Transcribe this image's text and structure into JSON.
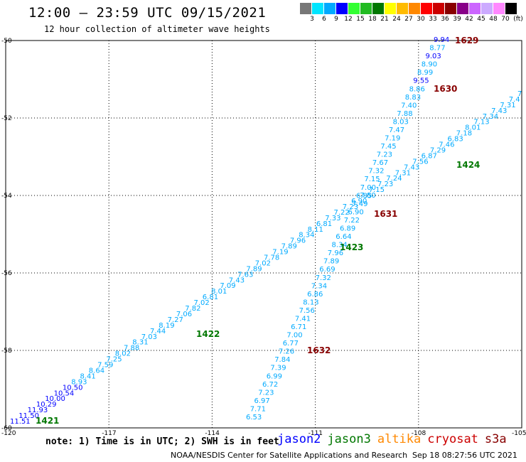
{
  "header": {
    "title": "12:00 – 23:59 UTC 09/15/2021",
    "subtitle": "12 hour collection of altimeter wave heights"
  },
  "legend": {
    "unit": "(ft)",
    "items": [
      {
        "label": "3",
        "color": "#777777"
      },
      {
        "label": "6",
        "color": "#00e5ff"
      },
      {
        "label": "9",
        "color": "#00aaff"
      },
      {
        "label": "12",
        "color": "#0000ff"
      },
      {
        "label": "15",
        "color": "#33ff33"
      },
      {
        "label": "18",
        "color": "#22bb22"
      },
      {
        "label": "21",
        "color": "#007700"
      },
      {
        "label": "24",
        "color": "#ffff00"
      },
      {
        "label": "27",
        "color": "#ffbb00"
      },
      {
        "label": "30",
        "color": "#ff8800"
      },
      {
        "label": "33",
        "color": "#ff0000"
      },
      {
        "label": "36",
        "color": "#cc0000"
      },
      {
        "label": "39",
        "color": "#880000"
      },
      {
        "label": "42",
        "color": "#880088"
      },
      {
        "label": "45",
        "color": "#cc66ff"
      },
      {
        "label": "48",
        "color": "#ccaaff"
      },
      {
        "label": "70",
        "color": "#ff88ff"
      },
      {
        "label": "",
        "color": "#000000"
      }
    ]
  },
  "map": {
    "lon_range": [
      -120,
      -105
    ],
    "lat_range": [
      -50,
      -60
    ],
    "lon_ticks": [
      "-120",
      "-117",
      "-114",
      "-111",
      "-108",
      "-105"
    ],
    "lat_ticks": [
      "-50",
      "-52",
      "-54",
      "-56",
      "-58",
      "-60"
    ],
    "grid": "dotted"
  },
  "tracks": [
    {
      "id": "jason3-pass-a",
      "points": [
        {
          "t": "11.51",
          "c": "#0000ff"
        },
        {
          "t": "11.50",
          "c": "#0000ff"
        },
        {
          "t": "11.93",
          "c": "#0000ff"
        },
        {
          "t": "10.29",
          "c": "#0000ff"
        },
        {
          "t": "10.00",
          "c": "#0000ff"
        },
        {
          "t": "10.54",
          "c": "#0000ff"
        },
        {
          "t": "10.50",
          "c": "#0000ff"
        },
        {
          "t": "8.93",
          "c": "#00aaff"
        },
        {
          "t": "8.41",
          "c": "#00aaff"
        },
        {
          "t": "8.64",
          "c": "#00aaff"
        },
        {
          "t": "7.59",
          "c": "#00aaff"
        },
        {
          "t": "7.25",
          "c": "#00aaff"
        },
        {
          "t": "8.02",
          "c": "#00aaff"
        },
        {
          "t": "7.88",
          "c": "#00aaff"
        },
        {
          "t": "8.31",
          "c": "#00aaff"
        },
        {
          "t": "7.03",
          "c": "#00aaff"
        },
        {
          "t": "7.44",
          "c": "#00aaff"
        },
        {
          "t": "8.19",
          "c": "#00aaff"
        },
        {
          "t": "7.27",
          "c": "#00aaff"
        },
        {
          "t": "7.06",
          "c": "#00aaff"
        },
        {
          "t": "7.82",
          "c": "#00aaff"
        },
        {
          "t": "7.02",
          "c": "#00aaff"
        },
        {
          "t": "6.81",
          "c": "#00aaff"
        },
        {
          "t": "8.01",
          "c": "#00aaff"
        },
        {
          "t": "7.09",
          "c": "#00aaff"
        },
        {
          "t": "7.43",
          "c": "#00aaff"
        },
        {
          "t": "7.63",
          "c": "#00aaff"
        },
        {
          "t": "7.89",
          "c": "#00aaff"
        },
        {
          "t": "7.02",
          "c": "#00aaff"
        },
        {
          "t": "7.78",
          "c": "#00aaff"
        },
        {
          "t": "7.19",
          "c": "#00aaff"
        },
        {
          "t": "7.89",
          "c": "#00aaff"
        },
        {
          "t": "7.96",
          "c": "#00aaff"
        },
        {
          "t": "8.34",
          "c": "#00aaff"
        },
        {
          "t": "8.11",
          "c": "#00aaff"
        },
        {
          "t": "6.81",
          "c": "#00aaff"
        },
        {
          "t": "7.33",
          "c": "#00aaff"
        },
        {
          "t": "7.22",
          "c": "#00aaff"
        },
        {
          "t": "7.23",
          "c": "#00aaff"
        },
        {
          "t": "6.90",
          "c": "#00aaff"
        },
        {
          "t": "7.80",
          "c": "#00aaff"
        },
        {
          "t": "7.15",
          "c": "#00aaff"
        },
        {
          "t": "7.23",
          "c": "#00aaff"
        },
        {
          "t": "7.24",
          "c": "#00aaff"
        },
        {
          "t": "7.31",
          "c": "#00aaff"
        },
        {
          "t": "7.43",
          "c": "#00aaff"
        },
        {
          "t": "7.56",
          "c": "#00aaff"
        },
        {
          "t": "6.87",
          "c": "#00aaff"
        },
        {
          "t": "7.29",
          "c": "#00aaff"
        },
        {
          "t": "7.46",
          "c": "#00aaff"
        },
        {
          "t": "6.83",
          "c": "#00aaff"
        },
        {
          "t": "7.18",
          "c": "#00aaff"
        },
        {
          "t": "8.01",
          "c": "#00aaff"
        },
        {
          "t": "7.13",
          "c": "#00aaff"
        },
        {
          "t": "7.34",
          "c": "#00aaff"
        },
        {
          "t": "7.43",
          "c": "#00aaff"
        },
        {
          "t": "7.31",
          "c": "#00aaff"
        },
        {
          "t": "7.4",
          "c": "#00aaff"
        },
        {
          "t": "7",
          "c": "#00aaff"
        }
      ]
    },
    {
      "id": "cryosat-pass-b",
      "points": [
        {
          "t": "6.53",
          "c": "#00aaff"
        },
        {
          "t": "7.71",
          "c": "#00aaff"
        },
        {
          "t": "6.97",
          "c": "#00aaff"
        },
        {
          "t": "7.23",
          "c": "#00aaff"
        },
        {
          "t": "6.72",
          "c": "#00aaff"
        },
        {
          "t": "6.99",
          "c": "#00aaff"
        },
        {
          "t": "7.39",
          "c": "#00aaff"
        },
        {
          "t": "7.84",
          "c": "#00aaff"
        },
        {
          "t": "7.26",
          "c": "#00aaff"
        },
        {
          "t": "6.77",
          "c": "#00aaff"
        },
        {
          "t": "7.00",
          "c": "#00aaff"
        },
        {
          "t": "6.71",
          "c": "#00aaff"
        },
        {
          "t": "7.41",
          "c": "#00aaff"
        },
        {
          "t": "7.56",
          "c": "#00aaff"
        },
        {
          "t": "8.13",
          "c": "#00aaff"
        },
        {
          "t": "6.86",
          "c": "#00aaff"
        },
        {
          "t": "7.34",
          "c": "#00aaff"
        },
        {
          "t": "7.32",
          "c": "#00aaff"
        },
        {
          "t": "6.69",
          "c": "#00aaff"
        },
        {
          "t": "7.89",
          "c": "#00aaff"
        },
        {
          "t": "7.96",
          "c": "#00aaff"
        },
        {
          "t": "8.34",
          "c": "#00aaff"
        },
        {
          "t": "6.64",
          "c": "#00aaff"
        },
        {
          "t": "6.89",
          "c": "#00aaff"
        },
        {
          "t": "7.22",
          "c": "#00aaff"
        },
        {
          "t": "6.90",
          "c": "#00aaff"
        },
        {
          "t": "7.49",
          "c": "#00aaff"
        },
        {
          "t": "6.85",
          "c": "#00aaff"
        },
        {
          "t": "7.00",
          "c": "#00aaff"
        },
        {
          "t": "7.15",
          "c": "#00aaff"
        },
        {
          "t": "7.32",
          "c": "#00aaff"
        },
        {
          "t": "7.67",
          "c": "#00aaff"
        },
        {
          "t": "7.23",
          "c": "#00aaff"
        },
        {
          "t": "7.45",
          "c": "#00aaff"
        },
        {
          "t": "7.19",
          "c": "#00aaff"
        },
        {
          "t": "7.47",
          "c": "#00aaff"
        },
        {
          "t": "8.03",
          "c": "#00aaff"
        },
        {
          "t": "7.88",
          "c": "#00aaff"
        },
        {
          "t": "7.40",
          "c": "#00aaff"
        },
        {
          "t": "8.83",
          "c": "#00aaff"
        },
        {
          "t": "8.86",
          "c": "#00aaff"
        },
        {
          "t": "9.55",
          "c": "#0000ff"
        },
        {
          "t": "8.99",
          "c": "#00aaff"
        },
        {
          "t": "8.90",
          "c": "#00aaff"
        },
        {
          "t": "9.03",
          "c": "#0000ff"
        },
        {
          "t": "8.77",
          "c": "#00aaff"
        },
        {
          "t": "9.94",
          "c": "#0000ff"
        }
      ]
    }
  ],
  "time_labels": [
    {
      "t": "1421",
      "c": "#007700"
    },
    {
      "t": "1422",
      "c": "#007700"
    },
    {
      "t": "1423",
      "c": "#007700"
    },
    {
      "t": "1424",
      "c": "#007700"
    },
    {
      "t": "1629",
      "c": "#880000"
    },
    {
      "t": "1630",
      "c": "#880000"
    },
    {
      "t": "1631",
      "c": "#880000"
    },
    {
      "t": "1632",
      "c": "#880000"
    }
  ],
  "footer": {
    "note": "note: 1) Time is in UTC; 2) SWH is in feet",
    "satellites": [
      {
        "name": "jason2",
        "color": "#0000ff"
      },
      {
        "name": "jason3",
        "color": "#007700"
      },
      {
        "name": "altika",
        "color": "#ff8800"
      },
      {
        "name": "cryosat",
        "color": "#cc0000"
      },
      {
        "name": "s3a",
        "color": "#880000"
      }
    ],
    "credit": "NOAA/NESDIS Center for Satellite Applications and Research",
    "timestamp": "Sep 18 08:27:56 UTC 2021"
  }
}
